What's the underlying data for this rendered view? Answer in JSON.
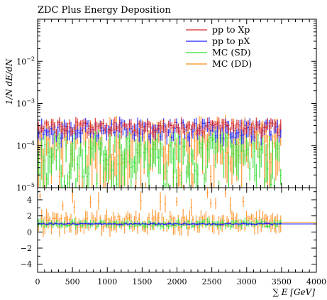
{
  "chart_data": [
    {
      "type": "line",
      "panel": "main",
      "title": "ZDC Plus Energy Deposition",
      "ylabel": "1/N dE/dN",
      "xlabel": "",
      "xlim": [
        0,
        4000
      ],
      "ylim": [
        1e-05,
        0.1
      ],
      "yscale": "log",
      "yticks": [
        {
          "value": 0.01,
          "mantissa": "10",
          "exp": "−2"
        },
        {
          "value": 0.001,
          "mantissa": "10",
          "exp": "−3"
        },
        {
          "value": 0.0001,
          "mantissa": "10",
          "exp": "−4"
        },
        {
          "value": 1e-05,
          "mantissa": "10",
          "exp": "−5"
        }
      ],
      "legend_position": "top-right",
      "series": [
        {
          "name": "pp to Xp",
          "color": "#d62728",
          "level": 0.00028,
          "spread": 8e-05,
          "errfrac": 0.25,
          "x_end": 3500
        },
        {
          "name": "pp to pX",
          "color": "#1f1fff",
          "level": 0.00025,
          "spread": 0.0001,
          "errfrac": 0.3,
          "x_end": 3500
        },
        {
          "name": "MC (SD)",
          "color": "#33dd33",
          "level": 9e-05,
          "spread": 7e-05,
          "errfrac": 0.6,
          "x_end": 3500
        },
        {
          "name": "MC (DD)",
          "color": "#ff8c1a",
          "level": 0.00016,
          "spread": 0.00012,
          "errfrac": 0.7,
          "x_end": 3500
        }
      ]
    },
    {
      "type": "line",
      "panel": "ratio",
      "xlabel": "∑ E [GeV]",
      "ylabel": "",
      "xlim": [
        0,
        4000
      ],
      "ylim": [
        -5,
        5.5
      ],
      "xticks": [
        "0",
        "500",
        "1000",
        "1500",
        "2000",
        "2500",
        "3000",
        "3500",
        "4000"
      ],
      "yticks": [
        "4",
        "2",
        "0",
        "−2",
        "−4"
      ],
      "reference_value": 1,
      "series": [
        {
          "name": "pp to pX",
          "color": "#1f1fff",
          "level": 1.0,
          "spread": 0.15
        },
        {
          "name": "MC (SD)",
          "color": "#33dd33",
          "level": 1.0,
          "spread": 0.5
        },
        {
          "name": "MC (DD)",
          "color": "#ff8c1a",
          "level": 1.2,
          "spread": 1.2
        }
      ]
    }
  ]
}
